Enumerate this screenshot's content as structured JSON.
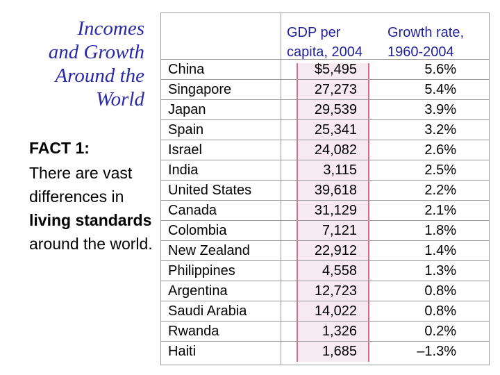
{
  "slide": {
    "title_lines": [
      "Incomes",
      "and Growth",
      "Around the",
      "World"
    ],
    "fact_heading": "FACT 1:",
    "fact_pre": "There are vast differences in ",
    "fact_bold": "living standards",
    "fact_post": " around the world."
  },
  "table": {
    "header_gdp": [
      "GDP per",
      "capita, 2004"
    ],
    "header_rate": [
      "Growth rate,",
      "1960-2004"
    ],
    "rows": [
      {
        "country": "China",
        "gdp": "$5,495",
        "rate": "5.6%"
      },
      {
        "country": "Singapore",
        "gdp": "27,273",
        "rate": "5.4%"
      },
      {
        "country": "Japan",
        "gdp": "29,539",
        "rate": "3.9%"
      },
      {
        "country": "Spain",
        "gdp": "25,341",
        "rate": "3.2%"
      },
      {
        "country": "Israel",
        "gdp": "24,082",
        "rate": "2.6%"
      },
      {
        "country": "India",
        "gdp": "3,115",
        "rate": "2.5%"
      },
      {
        "country": "United States",
        "gdp": "39,618",
        "rate": "2.2%"
      },
      {
        "country": "Canada",
        "gdp": "31,129",
        "rate": "2.1%"
      },
      {
        "country": "Colombia",
        "gdp": "7,121",
        "rate": "1.8%"
      },
      {
        "country": "New Zealand",
        "gdp": "22,912",
        "rate": "1.4%"
      },
      {
        "country": "Philippines",
        "gdp": "4,558",
        "rate": "1.3%"
      },
      {
        "country": "Argentina",
        "gdp": "12,723",
        "rate": "0.8%"
      },
      {
        "country": "Saudi Arabia",
        "gdp": "14,022",
        "rate": "0.8%"
      },
      {
        "country": "Rwanda",
        "gdp": "1,326",
        "rate": "0.2%"
      },
      {
        "country": "Haiti",
        "gdp": "1,685",
        "rate": "–1.3%"
      }
    ]
  },
  "colors": {
    "title": "#2a2aa8",
    "header": "#1f1f9c",
    "highlight_border": "#e06a8a",
    "highlight_fill": "#f6e9ef"
  }
}
